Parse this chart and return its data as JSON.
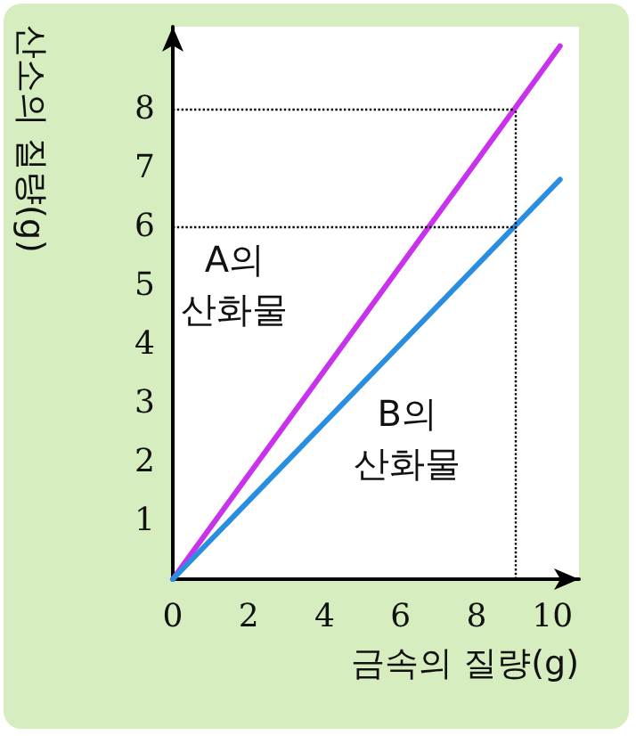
{
  "chart_data": {
    "type": "line",
    "xlabel": "금속의 질량(g)",
    "ylabel": "산소의 질량(g)",
    "xlim": [
      0,
      10.7
    ],
    "xticks": [
      0,
      2,
      4,
      6,
      8,
      10
    ],
    "ylim": [
      0,
      9.4
    ],
    "yticks": [
      1,
      2,
      3,
      4,
      5,
      6,
      7,
      8
    ],
    "series": [
      {
        "name": "A의 산화물",
        "color": "#c832ec",
        "x": [
          0,
          9,
          10.2
        ],
        "values": [
          0,
          8,
          9.07
        ]
      },
      {
        "name": "B의 산화물",
        "color": "#2a8ee0",
        "x": [
          0,
          9,
          10.2
        ],
        "values": [
          0,
          6,
          6.8
        ]
      }
    ],
    "ref_lines": [
      {
        "axis": "y",
        "value": 8,
        "line_style": "dotted",
        "color": "#000000"
      },
      {
        "axis": "y",
        "value": 6,
        "line_style": "dotted",
        "color": "#000000"
      },
      {
        "axis": "x",
        "value": 9,
        "line_style": "dotted",
        "color": "#000000"
      }
    ],
    "grid": false,
    "legend": false,
    "marker": "none",
    "line_style": "solid"
  }
}
